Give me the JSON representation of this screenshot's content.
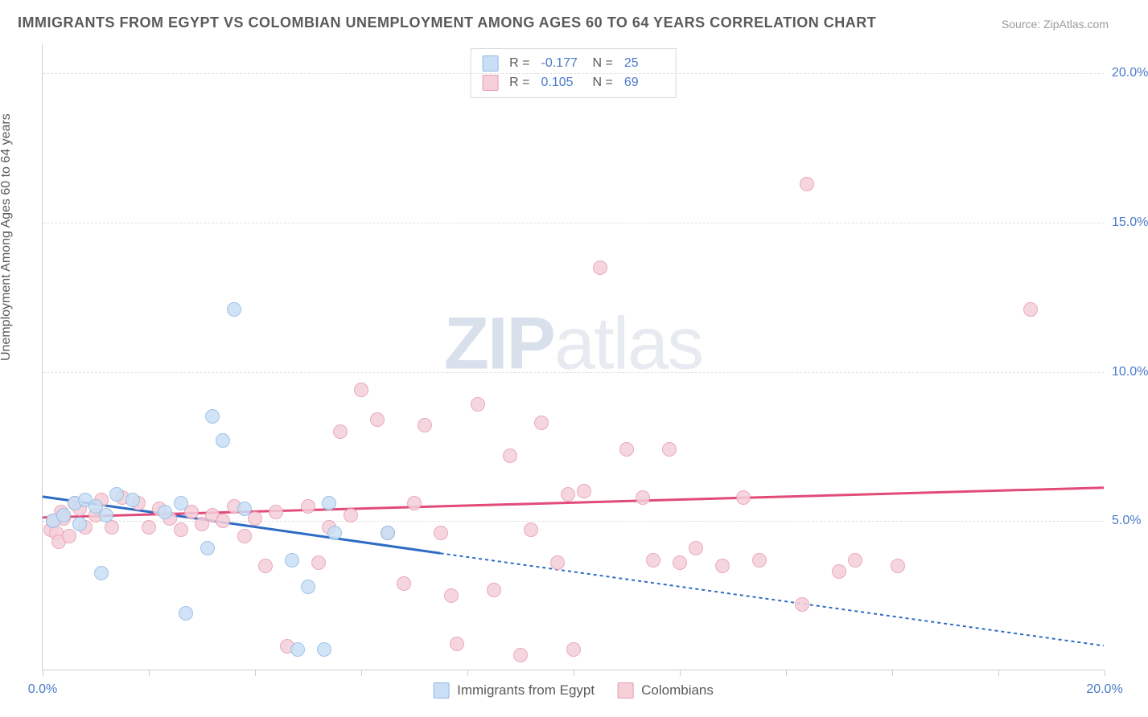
{
  "title": "IMMIGRANTS FROM EGYPT VS COLOMBIAN UNEMPLOYMENT AMONG AGES 60 TO 64 YEARS CORRELATION CHART",
  "source_label": "Source: ZipAtlas.com",
  "y_axis_label": "Unemployment Among Ages 60 to 64 years",
  "watermark_a": "ZIP",
  "watermark_b": "atlas",
  "chart": {
    "type": "scatter",
    "xlim": [
      0,
      20
    ],
    "ylim": [
      0,
      21
    ],
    "x_ticks": [
      0,
      2,
      4,
      6,
      8,
      10,
      12,
      14,
      16,
      18,
      20
    ],
    "x_tick_labels": {
      "0": "0.0%",
      "20": "20.0%"
    },
    "y_ticks": [
      5,
      10,
      15,
      20
    ],
    "y_tick_labels": {
      "5": "5.0%",
      "10": "10.0%",
      "15": "15.0%",
      "20": "20.0%"
    },
    "background_color": "#ffffff",
    "grid_color": "#e0e0e0",
    "axis_color": "#cfcfcf",
    "tick_label_color": "#4a7bc8",
    "marker_radius": 9,
    "marker_stroke_width": 1.5,
    "series": [
      {
        "name": "Immigrants from Egypt",
        "key": "egypt",
        "fill": "#c9dff5",
        "stroke": "#8fb9e6",
        "trend_color": "#2d6bc4",
        "trend_width": 3,
        "trend_dash_extend": "4 4",
        "R": "-0.177",
        "N": "25",
        "trend": {
          "x1": 0,
          "y1": 5.8,
          "x2": 7.5,
          "y2": 3.9,
          "x2_ext": 20,
          "y2_ext": 0.8
        },
        "points": [
          [
            0.2,
            5.0
          ],
          [
            0.4,
            5.2
          ],
          [
            0.6,
            5.6
          ],
          [
            0.7,
            4.9
          ],
          [
            0.8,
            5.7
          ],
          [
            1.0,
            5.5
          ],
          [
            1.1,
            3.25
          ],
          [
            1.2,
            5.2
          ],
          [
            1.4,
            5.9
          ],
          [
            1.7,
            5.7
          ],
          [
            2.3,
            5.3
          ],
          [
            2.6,
            5.6
          ],
          [
            2.7,
            1.9
          ],
          [
            3.1,
            4.1
          ],
          [
            3.2,
            8.5
          ],
          [
            3.4,
            7.7
          ],
          [
            3.6,
            12.1
          ],
          [
            3.8,
            5.4
          ],
          [
            4.7,
            3.7
          ],
          [
            4.8,
            0.7
          ],
          [
            5.0,
            2.8
          ],
          [
            5.3,
            0.7
          ],
          [
            5.4,
            5.6
          ],
          [
            5.5,
            4.6
          ],
          [
            6.5,
            4.6
          ]
        ]
      },
      {
        "name": "Colombians",
        "key": "colombians",
        "fill": "#f5d0d9",
        "stroke": "#e79bb0",
        "trend_color": "#e24a78",
        "trend_width": 3,
        "R": "0.105",
        "N": "69",
        "trend": {
          "x1": 0,
          "y1": 5.1,
          "x2": 20,
          "y2": 6.1
        },
        "points": [
          [
            0.15,
            4.7
          ],
          [
            0.2,
            5.0
          ],
          [
            0.25,
            4.6
          ],
          [
            0.3,
            4.3
          ],
          [
            0.35,
            5.3
          ],
          [
            0.4,
            5.1
          ],
          [
            0.5,
            4.5
          ],
          [
            0.6,
            5.6
          ],
          [
            0.7,
            5.4
          ],
          [
            0.8,
            4.8
          ],
          [
            1.0,
            5.2
          ],
          [
            1.1,
            5.7
          ],
          [
            1.3,
            4.8
          ],
          [
            1.5,
            5.8
          ],
          [
            1.8,
            5.6
          ],
          [
            2.0,
            4.8
          ],
          [
            2.2,
            5.4
          ],
          [
            2.4,
            5.1
          ],
          [
            2.6,
            4.7
          ],
          [
            2.8,
            5.3
          ],
          [
            3.0,
            4.9
          ],
          [
            3.2,
            5.2
          ],
          [
            3.4,
            5.0
          ],
          [
            3.6,
            5.5
          ],
          [
            3.8,
            4.5
          ],
          [
            4.0,
            5.1
          ],
          [
            4.2,
            3.5
          ],
          [
            4.4,
            5.3
          ],
          [
            4.6,
            0.8
          ],
          [
            5.0,
            5.5
          ],
          [
            5.2,
            3.6
          ],
          [
            5.4,
            4.8
          ],
          [
            5.6,
            8.0
          ],
          [
            5.8,
            5.2
          ],
          [
            6.0,
            9.4
          ],
          [
            6.5,
            4.6
          ],
          [
            6.8,
            2.9
          ],
          [
            7.0,
            5.6
          ],
          [
            7.5,
            4.6
          ],
          [
            7.7,
            2.5
          ],
          [
            7.8,
            0.9
          ],
          [
            8.2,
            8.9
          ],
          [
            8.5,
            2.7
          ],
          [
            8.8,
            7.2
          ],
          [
            9.0,
            0.5
          ],
          [
            9.2,
            4.7
          ],
          [
            9.4,
            8.3
          ],
          [
            9.7,
            3.6
          ],
          [
            9.9,
            5.9
          ],
          [
            10.0,
            0.7
          ],
          [
            10.2,
            6.0
          ],
          [
            10.5,
            13.5
          ],
          [
            11.0,
            7.4
          ],
          [
            11.3,
            5.8
          ],
          [
            11.5,
            3.7
          ],
          [
            11.8,
            7.4
          ],
          [
            12.0,
            3.6
          ],
          [
            12.3,
            4.1
          ],
          [
            12.8,
            3.5
          ],
          [
            13.2,
            5.8
          ],
          [
            13.5,
            3.7
          ],
          [
            14.3,
            2.2
          ],
          [
            14.4,
            16.3
          ],
          [
            15.0,
            3.3
          ],
          [
            15.3,
            3.7
          ],
          [
            16.1,
            3.5
          ],
          [
            18.6,
            12.1
          ],
          [
            6.3,
            8.4
          ],
          [
            7.2,
            8.2
          ]
        ]
      }
    ]
  },
  "legend": {
    "top_rows": [
      {
        "series_key": "egypt",
        "R_label": "R =",
        "N_label": "N ="
      },
      {
        "series_key": "colombians",
        "R_label": "R =",
        "N_label": "N ="
      }
    ],
    "bottom": [
      {
        "series_key": "egypt"
      },
      {
        "series_key": "colombians"
      }
    ]
  }
}
